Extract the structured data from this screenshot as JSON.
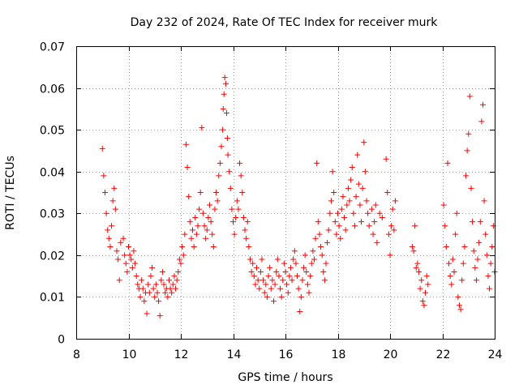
{
  "chart_data": {
    "type": "scatter",
    "title": "Day 232 of 2024, Rate Of TEC Index for receiver murk",
    "xlabel": "GPS time / hours",
    "ylabel": "ROTI / TECUs",
    "xlim": [
      8,
      24
    ],
    "ylim": [
      0,
      0.07
    ],
    "xticks": [
      8,
      10,
      12,
      14,
      16,
      18,
      20,
      22,
      24
    ],
    "yticks": [
      0,
      0.01,
      0.02,
      0.03,
      0.04,
      0.05,
      0.06,
      0.07
    ],
    "xtick_labels": [
      "8",
      "10",
      "12",
      "14",
      "16",
      "18",
      "20",
      "22",
      "24"
    ],
    "ytick_labels": [
      "0",
      "0.01",
      "0.02",
      "0.03",
      "0.04",
      "0.05",
      "0.06",
      "0.07"
    ],
    "grid": true,
    "marker": "+",
    "color": "#ff0000",
    "series": [
      {
        "name": "ROTI",
        "points": [
          [
            9.0,
            0.0455
          ],
          [
            9.05,
            0.039
          ],
          [
            9.1,
            0.035
          ],
          [
            9.15,
            0.03
          ],
          [
            9.2,
            0.026
          ],
          [
            9.25,
            0.024
          ],
          [
            9.3,
            0.022
          ],
          [
            9.35,
            0.027
          ],
          [
            9.4,
            0.033
          ],
          [
            9.45,
            0.036
          ],
          [
            9.5,
            0.031
          ],
          [
            9.55,
            0.021
          ],
          [
            9.6,
            0.019
          ],
          [
            9.65,
            0.014
          ],
          [
            9.7,
            0.023
          ],
          [
            9.8,
            0.024
          ],
          [
            9.85,
            0.02
          ],
          [
            9.9,
            0.018
          ],
          [
            9.95,
            0.016
          ],
          [
            10.0,
            0.022
          ],
          [
            10.05,
            0.02
          ],
          [
            10.1,
            0.019
          ],
          [
            10.15,
            0.017
          ],
          [
            10.2,
            0.021
          ],
          [
            10.25,
            0.018
          ],
          [
            10.3,
            0.015
          ],
          [
            10.35,
            0.013
          ],
          [
            10.4,
            0.012
          ],
          [
            10.45,
            0.01
          ],
          [
            10.5,
            0.014
          ],
          [
            10.55,
            0.012
          ],
          [
            10.6,
            0.009
          ],
          [
            10.65,
            0.011
          ],
          [
            10.7,
            0.006
          ],
          [
            10.75,
            0.013
          ],
          [
            10.8,
            0.011
          ],
          [
            10.85,
            0.015
          ],
          [
            10.9,
            0.017
          ],
          [
            10.95,
            0.012
          ],
          [
            11.0,
            0.01
          ],
          [
            11.05,
            0.013
          ],
          [
            11.1,
            0.011
          ],
          [
            11.15,
            0.009
          ],
          [
            11.2,
            0.0055
          ],
          [
            11.25,
            0.014
          ],
          [
            11.3,
            0.016
          ],
          [
            11.35,
            0.013
          ],
          [
            11.4,
            0.011
          ],
          [
            11.45,
            0.012
          ],
          [
            11.5,
            0.01
          ],
          [
            11.55,
            0.014
          ],
          [
            11.6,
            0.012
          ],
          [
            11.65,
            0.011
          ],
          [
            11.7,
            0.013
          ],
          [
            11.75,
            0.015
          ],
          [
            11.8,
            0.012
          ],
          [
            11.85,
            0.014
          ],
          [
            11.9,
            0.016
          ],
          [
            11.95,
            0.019
          ],
          [
            12.0,
            0.018
          ],
          [
            12.05,
            0.022
          ],
          [
            12.1,
            0.02
          ],
          [
            12.15,
            0.025
          ],
          [
            12.2,
            0.0465
          ],
          [
            12.25,
            0.041
          ],
          [
            12.3,
            0.034
          ],
          [
            12.35,
            0.028
          ],
          [
            12.4,
            0.024
          ],
          [
            12.45,
            0.026
          ],
          [
            12.5,
            0.022
          ],
          [
            12.55,
            0.029
          ],
          [
            12.6,
            0.025
          ],
          [
            12.65,
            0.027
          ],
          [
            12.7,
            0.031
          ],
          [
            12.75,
            0.035
          ],
          [
            12.8,
            0.0505
          ],
          [
            12.85,
            0.03
          ],
          [
            12.9,
            0.027
          ],
          [
            12.95,
            0.024
          ],
          [
            13.0,
            0.026
          ],
          [
            13.05,
            0.029
          ],
          [
            13.1,
            0.032
          ],
          [
            13.15,
            0.028
          ],
          [
            13.2,
            0.025
          ],
          [
            13.25,
            0.022
          ],
          [
            13.3,
            0.031
          ],
          [
            13.35,
            0.035
          ],
          [
            13.4,
            0.033
          ],
          [
            13.45,
            0.039
          ],
          [
            13.5,
            0.042
          ],
          [
            13.55,
            0.046
          ],
          [
            13.6,
            0.05
          ],
          [
            13.62,
            0.055
          ],
          [
            13.65,
            0.0585
          ],
          [
            13.68,
            0.0625
          ],
          [
            13.72,
            0.061
          ],
          [
            13.75,
            0.054
          ],
          [
            13.78,
            0.048
          ],
          [
            13.8,
            0.044
          ],
          [
            13.85,
            0.04
          ],
          [
            13.9,
            0.036
          ],
          [
            13.95,
            0.031
          ],
          [
            14.0,
            0.028
          ],
          [
            14.05,
            0.025
          ],
          [
            14.1,
            0.029
          ],
          [
            14.15,
            0.033
          ],
          [
            14.2,
            0.031
          ],
          [
            14.25,
            0.042
          ],
          [
            14.3,
            0.039
          ],
          [
            14.35,
            0.035
          ],
          [
            14.4,
            0.029
          ],
          [
            14.45,
            0.026
          ],
          [
            14.5,
            0.024
          ],
          [
            14.55,
            0.028
          ],
          [
            14.6,
            0.022
          ],
          [
            14.65,
            0.019
          ],
          [
            14.7,
            0.016
          ],
          [
            14.75,
            0.018
          ],
          [
            14.8,
            0.015
          ],
          [
            14.85,
            0.013
          ],
          [
            14.9,
            0.017
          ],
          [
            14.95,
            0.014
          ],
          [
            15.0,
            0.012
          ],
          [
            15.05,
            0.016
          ],
          [
            15.1,
            0.019
          ],
          [
            15.15,
            0.014
          ],
          [
            15.2,
            0.011
          ],
          [
            15.25,
            0.013
          ],
          [
            15.3,
            0.01
          ],
          [
            15.35,
            0.015
          ],
          [
            15.4,
            0.017
          ],
          [
            15.45,
            0.012
          ],
          [
            15.5,
            0.014
          ],
          [
            15.55,
            0.009
          ],
          [
            15.6,
            0.013
          ],
          [
            15.65,
            0.016
          ],
          [
            15.7,
            0.019
          ],
          [
            15.75,
            0.015
          ],
          [
            15.8,
            0.012
          ],
          [
            15.85,
            0.01
          ],
          [
            15.9,
            0.014
          ],
          [
            15.95,
            0.018
          ],
          [
            16.0,
            0.016
          ],
          [
            16.05,
            0.013
          ],
          [
            16.1,
            0.011
          ],
          [
            16.15,
            0.015
          ],
          [
            16.2,
            0.017
          ],
          [
            16.25,
            0.014
          ],
          [
            16.3,
            0.019
          ],
          [
            16.35,
            0.021
          ],
          [
            16.4,
            0.018
          ],
          [
            16.45,
            0.015
          ],
          [
            16.5,
            0.012
          ],
          [
            16.55,
            0.0065
          ],
          [
            16.6,
            0.01
          ],
          [
            16.65,
            0.014
          ],
          [
            16.7,
            0.017
          ],
          [
            16.75,
            0.02
          ],
          [
            16.8,
            0.016
          ],
          [
            16.85,
            0.013
          ],
          [
            16.9,
            0.011
          ],
          [
            16.95,
            0.015
          ],
          [
            17.0,
            0.018
          ],
          [
            17.05,
            0.021
          ],
          [
            17.1,
            0.019
          ],
          [
            17.15,
            0.024
          ],
          [
            17.2,
            0.042
          ],
          [
            17.25,
            0.028
          ],
          [
            17.3,
            0.025
          ],
          [
            17.35,
            0.022
          ],
          [
            17.4,
            0.02
          ],
          [
            17.45,
            0.016
          ],
          [
            17.5,
            0.014
          ],
          [
            17.55,
            0.018
          ],
          [
            17.6,
            0.023
          ],
          [
            17.65,
            0.026
          ],
          [
            17.7,
            0.03
          ],
          [
            17.75,
            0.033
          ],
          [
            17.8,
            0.04
          ],
          [
            17.85,
            0.035
          ],
          [
            17.9,
            0.028
          ],
          [
            17.95,
            0.025
          ],
          [
            18.0,
            0.03
          ],
          [
            18.05,
            0.027
          ],
          [
            18.1,
            0.024
          ],
          [
            18.15,
            0.031
          ],
          [
            18.2,
            0.034
          ],
          [
            18.25,
            0.029
          ],
          [
            18.3,
            0.026
          ],
          [
            18.35,
            0.032
          ],
          [
            18.4,
            0.036
          ],
          [
            18.45,
            0.033
          ],
          [
            18.5,
            0.038
          ],
          [
            18.55,
            0.041
          ],
          [
            18.6,
            0.03
          ],
          [
            18.65,
            0.027
          ],
          [
            18.7,
            0.034
          ],
          [
            18.75,
            0.044
          ],
          [
            18.8,
            0.037
          ],
          [
            18.85,
            0.032
          ],
          [
            18.9,
            0.028
          ],
          [
            18.95,
            0.036
          ],
          [
            19.0,
            0.047
          ],
          [
            19.05,
            0.04
          ],
          [
            19.1,
            0.033
          ],
          [
            19.15,
            0.03
          ],
          [
            19.2,
            0.027
          ],
          [
            19.3,
            0.031
          ],
          [
            19.35,
            0.025
          ],
          [
            19.4,
            0.028
          ],
          [
            19.45,
            0.032
          ],
          [
            19.5,
            0.023
          ],
          [
            19.6,
            0.03
          ],
          [
            19.7,
            0.029
          ],
          [
            19.85,
            0.043
          ],
          [
            19.9,
            0.035
          ],
          [
            19.95,
            0.025
          ],
          [
            20.0,
            0.02
          ],
          [
            20.05,
            0.027
          ],
          [
            20.1,
            0.031
          ],
          [
            20.15,
            0.026
          ],
          [
            20.2,
            0.033
          ],
          [
            20.85,
            0.022
          ],
          [
            20.9,
            0.021
          ],
          [
            20.95,
            0.027
          ],
          [
            21.0,
            0.017
          ],
          [
            21.05,
            0.018
          ],
          [
            21.1,
            0.016
          ],
          [
            21.15,
            0.012
          ],
          [
            21.2,
            0.014
          ],
          [
            21.25,
            0.009
          ],
          [
            21.3,
            0.008
          ],
          [
            21.35,
            0.011
          ],
          [
            21.4,
            0.015
          ],
          [
            21.45,
            0.013
          ],
          [
            22.05,
            0.032
          ],
          [
            22.1,
            0.027
          ],
          [
            22.15,
            0.022
          ],
          [
            22.2,
            0.042
          ],
          [
            22.25,
            0.018
          ],
          [
            22.3,
            0.015
          ],
          [
            22.35,
            0.013
          ],
          [
            22.4,
            0.019
          ],
          [
            22.45,
            0.016
          ],
          [
            22.5,
            0.025
          ],
          [
            22.55,
            0.03
          ],
          [
            22.6,
            0.01
          ],
          [
            22.65,
            0.008
          ],
          [
            22.7,
            0.007
          ],
          [
            22.75,
            0.014
          ],
          [
            22.8,
            0.018
          ],
          [
            22.85,
            0.022
          ],
          [
            22.9,
            0.039
          ],
          [
            22.95,
            0.045
          ],
          [
            23.0,
            0.049
          ],
          [
            23.05,
            0.058
          ],
          [
            23.1,
            0.036
          ],
          [
            23.15,
            0.028
          ],
          [
            23.2,
            0.021
          ],
          [
            23.25,
            0.017
          ],
          [
            23.3,
            0.014
          ],
          [
            23.35,
            0.019
          ],
          [
            23.4,
            0.023
          ],
          [
            23.45,
            0.028
          ],
          [
            23.5,
            0.052
          ],
          [
            23.55,
            0.056
          ],
          [
            23.6,
            0.033
          ],
          [
            23.65,
            0.025
          ],
          [
            23.7,
            0.02
          ],
          [
            23.75,
            0.015
          ],
          [
            23.8,
            0.012
          ],
          [
            23.85,
            0.018
          ],
          [
            23.9,
            0.022
          ],
          [
            23.95,
            0.027
          ],
          [
            24.0,
            0.016
          ]
        ]
      }
    ]
  }
}
